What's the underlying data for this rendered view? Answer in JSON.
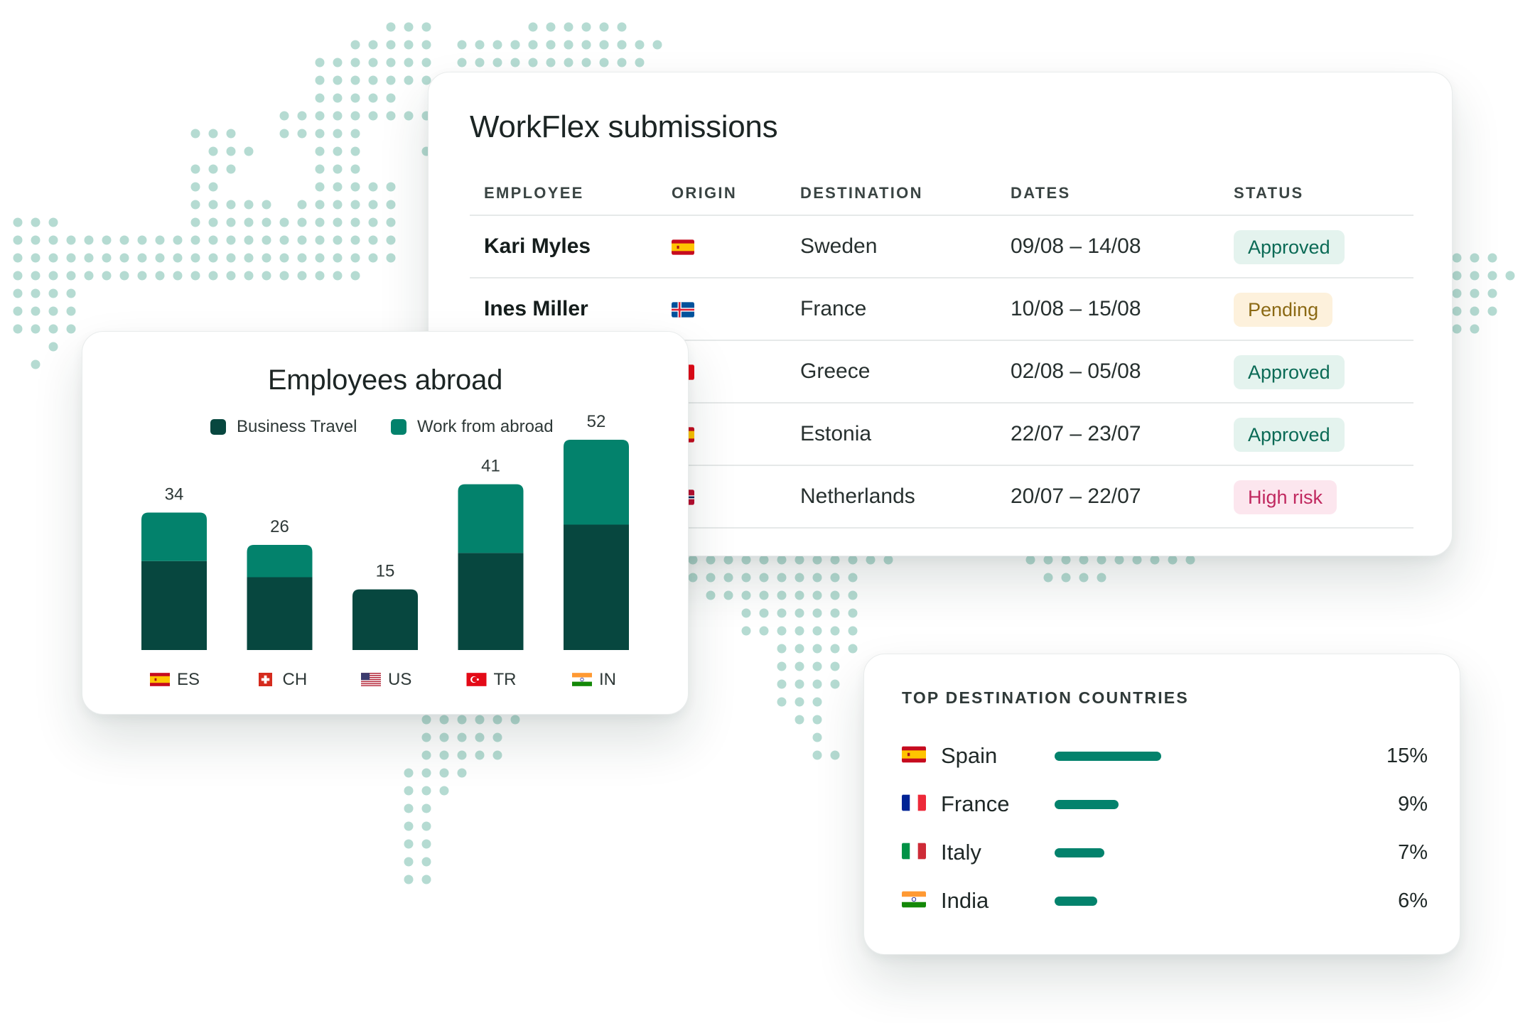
{
  "colors": {
    "map_dot": "#b5dbd2",
    "business_travel": "#07473f",
    "work_from_abroad": "#03826c",
    "approved_bg": "#e4f3ee",
    "approved_fg": "#0a6a55",
    "pending_bg": "#fdf1dc",
    "pending_fg": "#8b6914",
    "high_risk_bg": "#fce6ee",
    "high_risk_fg": "#c0285f"
  },
  "submissions": {
    "title": "WorkFlex submissions",
    "headers": [
      "EMPLOYEE",
      "ORIGIN",
      "DESTINATION",
      "DATES",
      "STATUS"
    ],
    "rows": [
      {
        "employee": "Kari Myles",
        "origin_flag": "spain-flag-icon",
        "destination": "Sweden",
        "dates": "09/08 – 14/08",
        "status": "Approved",
        "status_kind": "approved"
      },
      {
        "employee": "Ines Miller",
        "origin_flag": "iceland-flag-icon",
        "destination": "France",
        "dates": "10/08 – 15/08",
        "status": "Pending",
        "status_kind": "pending"
      },
      {
        "employee": "",
        "origin_flag": "red-flag-icon",
        "destination": "Greece",
        "dates": "02/08 – 05/08",
        "status": "Approved",
        "status_kind": "approved"
      },
      {
        "employee": "",
        "origin_flag": "spain-flag-icon",
        "destination": "Estonia",
        "dates": "22/07 – 23/07",
        "status": "Approved",
        "status_kind": "approved"
      },
      {
        "employee": "",
        "origin_flag": "norway-flag-icon",
        "destination": "Netherlands",
        "dates": "20/07 – 22/07",
        "status": "High risk",
        "status_kind": "high_risk"
      }
    ]
  },
  "employees_abroad": {
    "title": "Employees abroad",
    "legend": [
      {
        "label": "Business Travel",
        "color": "#07473f"
      },
      {
        "label": "Work from abroad",
        "color": "#03826c"
      }
    ]
  },
  "chart_data": {
    "type": "bar",
    "stacked": true,
    "title": "Employees abroad",
    "categories": [
      "ES",
      "CH",
      "US",
      "TR",
      "IN"
    ],
    "category_flags": [
      "spain-flag-icon",
      "switzerland-flag-icon",
      "usa-flag-icon",
      "turkey-flag-icon",
      "india-flag-icon"
    ],
    "series": [
      {
        "name": "Business Travel",
        "values": [
          22,
          18,
          15,
          24,
          31
        ]
      },
      {
        "name": "Work from abroad",
        "values": [
          12,
          8,
          0,
          17,
          21
        ]
      }
    ],
    "totals": [
      34,
      26,
      15,
      41,
      52
    ],
    "ylim": [
      0,
      52
    ],
    "grid": false,
    "legend_position": "top"
  },
  "top_destinations": {
    "title": "TOP DESTINATION COUNTRIES",
    "items": [
      {
        "country": "Spain",
        "flag": "spain-flag-icon",
        "percent_label": "15%",
        "percent": 15
      },
      {
        "country": "France",
        "flag": "france-flag-icon",
        "percent_label": "9%",
        "percent": 9
      },
      {
        "country": "Italy",
        "flag": "italy-flag-icon",
        "percent_label": "7%",
        "percent": 7
      },
      {
        "country": "India",
        "flag": "india-flag-icon",
        "percent_label": "6%",
        "percent": 6
      }
    ]
  }
}
